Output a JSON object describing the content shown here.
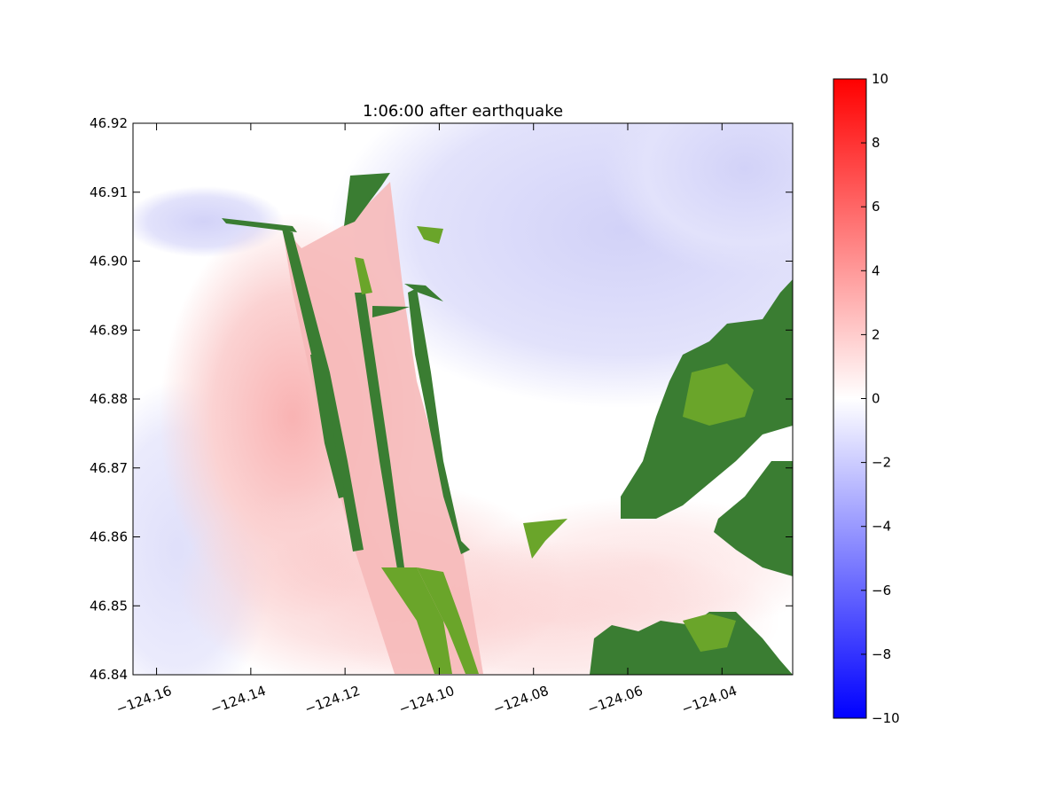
{
  "chart_data": {
    "type": "heatmap",
    "title": "1:06:00 after earthquake",
    "xlabel": "",
    "ylabel": "",
    "xlim": [
      -124.165,
      -124.025
    ],
    "ylim": [
      46.84,
      46.92
    ],
    "x_ticks": [
      -124.16,
      -124.14,
      -124.12,
      -124.1,
      -124.08,
      -124.06,
      -124.04
    ],
    "x_tick_labels": [
      "−124.16",
      "−124.14",
      "−124.12",
      "−124.10",
      "−124.08",
      "−124.06",
      "−124.04"
    ],
    "y_ticks": [
      46.84,
      46.85,
      46.86,
      46.87,
      46.88,
      46.89,
      46.9,
      46.91,
      46.92
    ],
    "y_tick_labels": [
      "46.84",
      "46.85",
      "46.86",
      "46.87",
      "46.88",
      "46.89",
      "46.90",
      "46.91",
      "46.92"
    ],
    "colorbar": {
      "range": [
        -10,
        10
      ],
      "ticks": [
        10,
        8,
        6,
        4,
        2,
        0,
        -2,
        -4,
        -6,
        -8,
        -10
      ],
      "tick_labels": [
        "10",
        "8",
        "6",
        "4",
        "2",
        "0",
        "−2",
        "−4",
        "−6",
        "−8",
        "−10"
      ],
      "colormap": "bwr",
      "colors": {
        "low": "#0000ff",
        "mid": "#ffffff",
        "high": "#ff0000"
      }
    },
    "land_color": "#3a7d32",
    "land_color_light": "#6aa52a",
    "grid": false
  }
}
